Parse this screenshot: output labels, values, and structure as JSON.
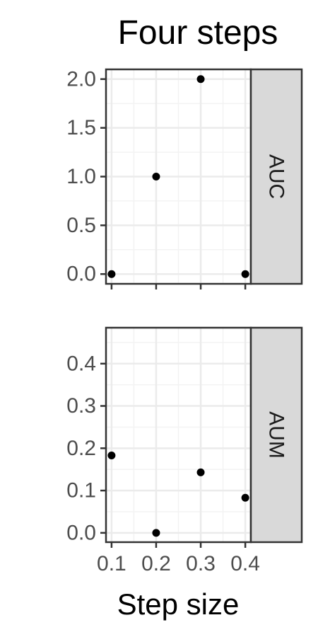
{
  "chart_data": {
    "type": "scatter",
    "title": "Four steps",
    "xlabel": "Step size",
    "ylabel": "",
    "x_ticks": [
      "0.1",
      "0.2",
      "0.3",
      "0.4"
    ],
    "x_tick_values": [
      0.1,
      0.2,
      0.3,
      0.4
    ],
    "xlim": [
      0.0875,
      0.4125
    ],
    "grid": true,
    "panels": [
      {
        "strip_label": "AUC",
        "ylim": [
          -0.1,
          2.1
        ],
        "y_ticks": [
          "0.0",
          "0.5",
          "1.0",
          "1.5",
          "2.0"
        ],
        "y_tick_values": [
          0,
          0.5,
          1.0,
          1.5,
          2.0
        ],
        "x": [
          0.1,
          0.2,
          0.3,
          0.4
        ],
        "y": [
          0,
          1,
          2,
          0
        ]
      },
      {
        "strip_label": "AUM",
        "ylim": [
          -0.022,
          0.485
        ],
        "y_ticks": [
          "0.0",
          "0.1",
          "0.2",
          "0.3",
          "0.4"
        ],
        "y_tick_values": [
          0,
          0.1,
          0.2,
          0.3,
          0.4
        ],
        "x": [
          0.1,
          0.2,
          0.3,
          0.4
        ],
        "y": [
          0.183,
          0.0,
          0.143,
          0.083
        ]
      }
    ],
    "colors": {
      "point": "#000000",
      "panel_border": "#333333",
      "strip_fill": "#d9d9d9",
      "grid_major": "#ebebeb",
      "grid_minor": "#f3f3f3",
      "tick_label": "#4d4d4d"
    }
  }
}
